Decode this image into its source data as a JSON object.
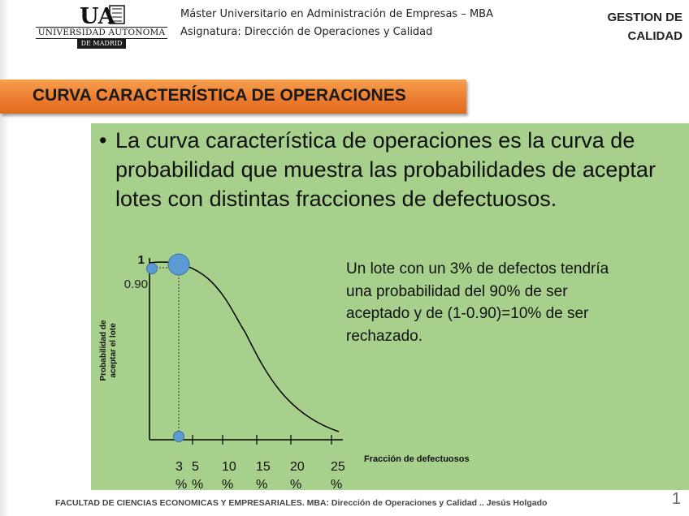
{
  "logo": {
    "mark": "UA",
    "line1": "UNIVERSIDAD AUTONOMA",
    "line2": "DE MADRID"
  },
  "header": {
    "line1": "Máster Universitario en Administración de Empresas – MBA",
    "line2": "Asignatura: Dirección de Operaciones y Calidad",
    "right_line1": "GESTION DE",
    "right_line2": "CALIDAD"
  },
  "title": "CURVA CARACTERÍSTICA DE OPERACIONES",
  "bullet": {
    "symbol": "•",
    "text": "La curva característica de operaciones es la curva de probabilidad que muestra las probabilidades de aceptar lotes con distintas fracciones de defectuosos."
  },
  "chart": {
    "ylabel_line1": "Probabilidad de",
    "ylabel_line2": "aceptar el lote",
    "xlabel": "Fracción de defectuosos",
    "y_ticks": [
      {
        "label": "1",
        "value": 1.0
      },
      {
        "label": "0.90",
        "value": 0.9
      }
    ],
    "x_ticks": [
      {
        "top": "3",
        "bottom": "%",
        "value": 3
      },
      {
        "top": "5",
        "bottom": "%",
        "value": 5
      },
      {
        "top": "10",
        "bottom": "%",
        "value": 10
      },
      {
        "top": "15",
        "bottom": "%",
        "value": 15
      },
      {
        "top": "20",
        "bottom": "%",
        "value": 20
      },
      {
        "top": "25",
        "bottom": "%",
        "value": 25
      }
    ],
    "highlight": {
      "x": 3,
      "y": 0.9
    },
    "colors": {
      "curve": "#000000",
      "marker": "#5b9bd5",
      "marker_stroke": "#41719c"
    }
  },
  "explanation": "Un lote con un 3% de defectos tendría una probabilidad del 90% de ser aceptado y de (1-0.90)=10% de ser rechazado.",
  "footer": "FACULTAD DE CIENCIAS ECONOMICAS Y EMPRESARIALES. MBA: Dirección de Operaciones y Calidad .. Jesús Holgado",
  "page_number": "1"
}
